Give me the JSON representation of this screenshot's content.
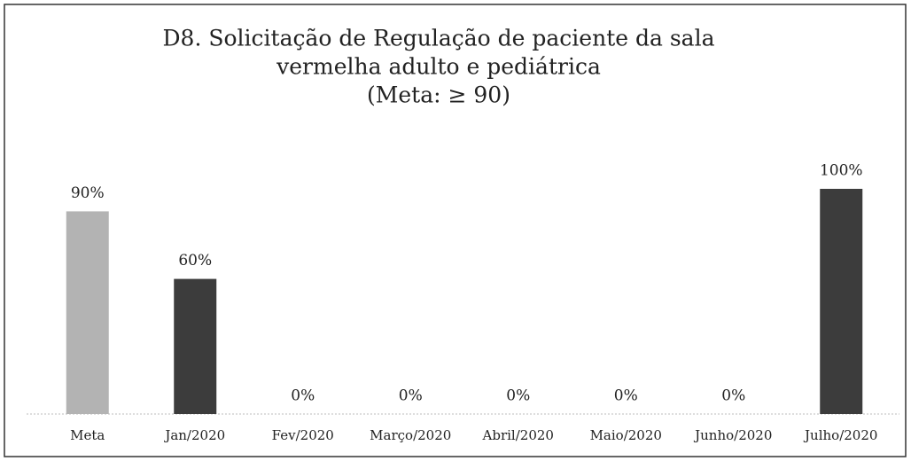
{
  "chart_data": {
    "type": "bar",
    "title": [
      "D8. Solicitação de Regulação de paciente da sala",
      "vermelha adulto e pediátrica",
      "(Meta: ≥ 90)"
    ],
    "categories": [
      "Meta",
      "Jan/2020",
      "Fev/2020",
      "Março/2020",
      "Abril/2020",
      "Maio/2020",
      "Junho/2020",
      "Julho/2020"
    ],
    "values": [
      90,
      60,
      0,
      0,
      0,
      0,
      0,
      100
    ],
    "value_labels": [
      "90%",
      "60%",
      "0%",
      "0%",
      "0%",
      "0%",
      "0%",
      "100%"
    ],
    "colors": [
      "#b3b3b3",
      "#3c3c3c",
      "#3c3c3c",
      "#3c3c3c",
      "#3c3c3c",
      "#3c3c3c",
      "#3c3c3c",
      "#3c3c3c"
    ]
  }
}
